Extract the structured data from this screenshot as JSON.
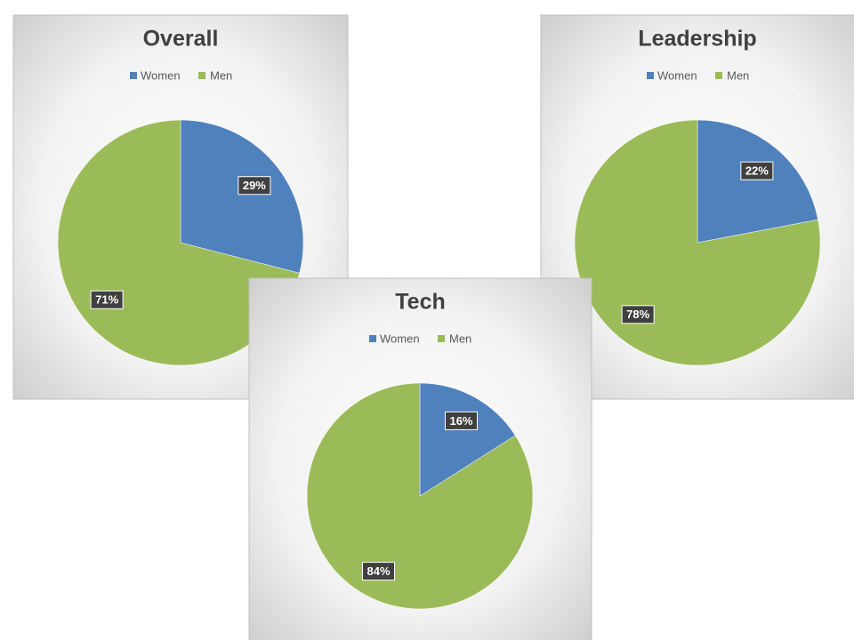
{
  "chart_data": [
    {
      "type": "pie",
      "title": "Overall",
      "categories": [
        "Women",
        "Men"
      ],
      "values": [
        29,
        71
      ],
      "value_labels": [
        "29%",
        "71%"
      ],
      "colors": [
        "#4f81bd",
        "#9bbb59"
      ]
    },
    {
      "type": "pie",
      "title": "Leadership",
      "categories": [
        "Women",
        "Men"
      ],
      "values": [
        22,
        78
      ],
      "value_labels": [
        "22%",
        "78%"
      ],
      "colors": [
        "#4f81bd",
        "#9bbb59"
      ]
    },
    {
      "type": "pie",
      "title": "Tech",
      "categories": [
        "Women",
        "Men"
      ],
      "values": [
        16,
        84
      ],
      "value_labels": [
        "16%",
        "84%"
      ],
      "colors": [
        "#4f81bd",
        "#9bbb59"
      ]
    }
  ]
}
